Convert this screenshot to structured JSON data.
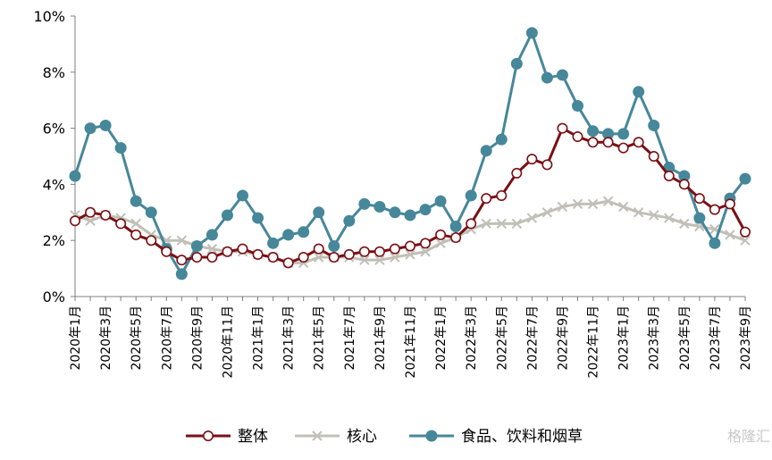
{
  "colors": {
    "overall": "#7a0f14",
    "core": "#c0c0b8",
    "food": "#47879a",
    "axis": "#7f7f7f",
    "watermark": "#c8c8c8"
  },
  "watermark": "格隆汇",
  "chart_data": {
    "type": "line",
    "ylim": [
      0,
      10
    ],
    "yticks": [
      "0%",
      "2%",
      "4%",
      "6%",
      "8%",
      "10%"
    ],
    "grid": false,
    "legend_position": "bottom",
    "x": [
      "2020年1月",
      "2020年2月",
      "2020年3月",
      "2020年4月",
      "2020年5月",
      "2020年6月",
      "2020年7月",
      "2020年8月",
      "2020年9月",
      "2020年10月",
      "2020年11月",
      "2020年12月",
      "2021年1月",
      "2021年2月",
      "2021年3月",
      "2021年4月",
      "2021年5月",
      "2021年6月",
      "2021年7月",
      "2021年8月",
      "2021年9月",
      "2021年10月",
      "2021年11月",
      "2021年12月",
      "2022年1月",
      "2022年2月",
      "2022年3月",
      "2022年4月",
      "2022年5月",
      "2022年6月",
      "2022年7月",
      "2022年8月",
      "2022年9月",
      "2022年10月",
      "2022年11月",
      "2022年12月",
      "2023年1月",
      "2023年2月",
      "2023年3月",
      "2023年4月",
      "2023年5月",
      "2023年6月",
      "2023年7月",
      "2023年8月",
      "2023年9月"
    ],
    "xtick_labels": [
      "2020年1月",
      "2020年3月",
      "2020年5月",
      "2020年7月",
      "2020年9月",
      "2020年11月",
      "2021年1月",
      "2021年3月",
      "2021年5月",
      "2021年7月",
      "2021年9月",
      "2021年11月",
      "2022年1月",
      "2022年3月",
      "2022年5月",
      "2022年7月",
      "2022年9月",
      "2022年11月",
      "2023年1月",
      "2023年3月",
      "2023年5月",
      "2023年7月",
      "2023年9月"
    ],
    "series": [
      {
        "name": "整体",
        "key": "overall",
        "values": [
          2.7,
          3.0,
          2.9,
          2.6,
          2.2,
          2.0,
          1.6,
          1.3,
          1.4,
          1.4,
          1.6,
          1.7,
          1.5,
          1.4,
          1.2,
          1.4,
          1.7,
          1.4,
          1.5,
          1.6,
          1.6,
          1.7,
          1.8,
          1.9,
          2.2,
          2.1,
          2.6,
          3.5,
          3.6,
          4.4,
          4.9,
          4.7,
          6.0,
          5.7,
          5.5,
          5.5,
          5.3,
          5.5,
          5.0,
          4.3,
          4.0,
          3.5,
          3.1,
          3.3,
          2.3
        ]
      },
      {
        "name": "核心",
        "key": "core",
        "values": [
          2.9,
          2.7,
          2.9,
          2.8,
          2.6,
          2.2,
          2.0,
          2.0,
          1.8,
          1.7,
          1.6,
          1.6,
          1.5,
          1.4,
          1.2,
          1.2,
          1.4,
          1.4,
          1.4,
          1.3,
          1.3,
          1.4,
          1.5,
          1.6,
          1.9,
          2.1,
          2.4,
          2.6,
          2.6,
          2.6,
          2.8,
          3.0,
          3.2,
          3.3,
          3.3,
          3.4,
          3.2,
          3.0,
          2.9,
          2.8,
          2.6,
          2.5,
          2.4,
          2.2,
          2.0
        ]
      },
      {
        "name": "食品、饮料和烟草",
        "key": "food",
        "values": [
          4.3,
          6.0,
          6.1,
          5.3,
          3.4,
          3.0,
          1.7,
          0.8,
          1.8,
          2.2,
          2.9,
          3.6,
          2.8,
          1.9,
          2.2,
          2.3,
          3.0,
          1.8,
          2.7,
          3.3,
          3.2,
          3.0,
          2.9,
          3.1,
          3.4,
          2.5,
          3.6,
          5.2,
          5.6,
          8.3,
          9.4,
          7.8,
          7.9,
          6.8,
          5.9,
          5.8,
          5.8,
          7.3,
          6.1,
          4.6,
          4.3,
          2.8,
          1.9,
          3.5,
          4.2
        ]
      }
    ]
  }
}
